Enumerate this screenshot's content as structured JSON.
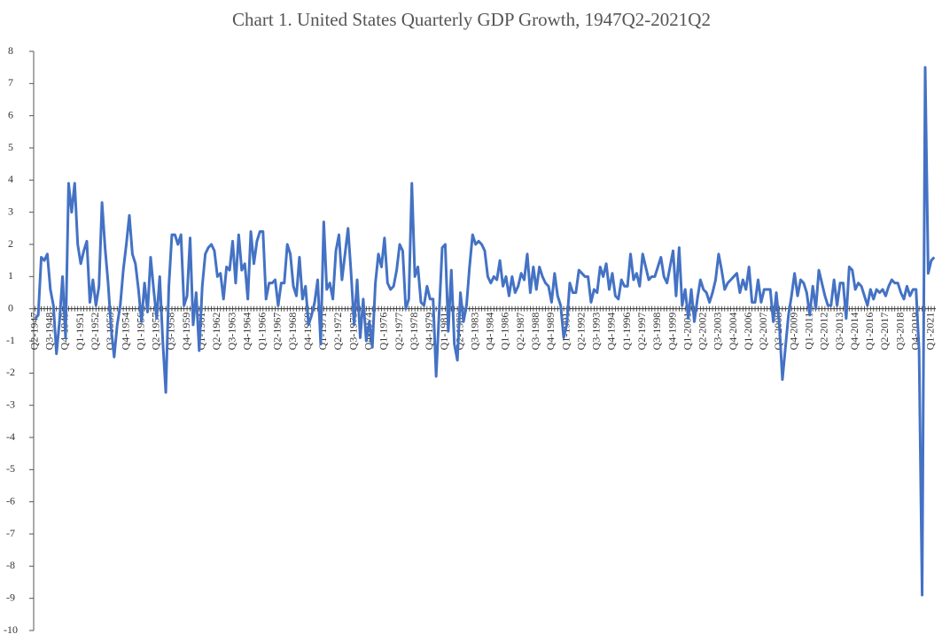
{
  "chart_data": {
    "type": "line",
    "title": "Chart 1. United States Quarterly GDP Growth, 1947Q2-2021Q2",
    "categories": [
      "Q2-1947",
      null,
      null,
      null,
      null,
      "Q3-1948",
      null,
      null,
      null,
      null,
      "Q4-1949",
      null,
      null,
      null,
      null,
      "Q1-1951",
      null,
      null,
      null,
      null,
      "Q2-1952",
      null,
      null,
      null,
      null,
      "Q3-1953",
      null,
      null,
      null,
      null,
      "Q4-1954",
      null,
      null,
      null,
      null,
      "Q1-1956",
      null,
      null,
      null,
      null,
      "Q2-1957",
      null,
      null,
      null,
      null,
      "Q3-1958",
      null,
      null,
      null,
      null,
      "Q4-1959",
      null,
      null,
      null,
      null,
      "Q1-1961",
      null,
      null,
      null,
      null,
      "Q2-1962",
      null,
      null,
      null,
      null,
      "Q3-1963",
      null,
      null,
      null,
      null,
      "Q4-1964",
      null,
      null,
      null,
      null,
      "Q1-1966",
      null,
      null,
      null,
      null,
      "Q2-1967",
      null,
      null,
      null,
      null,
      "Q3-1968",
      null,
      null,
      null,
      null,
      "Q4-1969",
      null,
      null,
      null,
      null,
      "Q1-1971",
      null,
      null,
      null,
      null,
      "Q2-1972",
      null,
      null,
      null,
      null,
      "Q3-1973",
      null,
      null,
      null,
      null,
      "Q4-1974",
      null,
      null,
      null,
      null,
      "Q1-1976",
      null,
      null,
      null,
      null,
      "Q2-1977",
      null,
      null,
      null,
      null,
      "Q3-1978",
      null,
      null,
      null,
      null,
      "Q4-1979",
      null,
      null,
      null,
      null,
      "Q1-1981",
      null,
      null,
      null,
      null,
      "Q2-1982",
      null,
      null,
      null,
      null,
      "Q3-1983",
      null,
      null,
      null,
      null,
      "Q4-1984",
      null,
      null,
      null,
      null,
      "Q1-1986",
      null,
      null,
      null,
      null,
      "Q2-1987",
      null,
      null,
      null,
      null,
      "Q3-1988",
      null,
      null,
      null,
      null,
      "Q4-1989",
      null,
      null,
      null,
      null,
      "Q1-1991",
      null,
      null,
      null,
      null,
      "Q2-1992",
      null,
      null,
      null,
      null,
      "Q3-1993",
      null,
      null,
      null,
      null,
      "Q4-1994",
      null,
      null,
      null,
      null,
      "Q1-1996",
      null,
      null,
      null,
      null,
      "Q2-1997",
      null,
      null,
      null,
      null,
      "Q3-1998",
      null,
      null,
      null,
      null,
      "Q4-1999",
      null,
      null,
      null,
      null,
      "Q1-2001",
      null,
      null,
      null,
      null,
      "Q2-2002",
      null,
      null,
      null,
      null,
      "Q3-2003",
      null,
      null,
      null,
      null,
      "Q4-2004",
      null,
      null,
      null,
      null,
      "Q1-2006",
      null,
      null,
      null,
      null,
      "Q2-2007",
      null,
      null,
      null,
      null,
      "Q3-2008",
      null,
      null,
      null,
      null,
      "Q4-2009",
      null,
      null,
      null,
      null,
      "Q1-2011",
      null,
      null,
      null,
      null,
      "Q2-2012",
      null,
      null,
      null,
      null,
      "Q3-2013",
      null,
      null,
      null,
      null,
      "Q4-2014",
      null,
      null,
      null,
      null,
      "Q1-2016",
      null,
      null,
      null,
      null,
      "Q2-2017",
      null,
      null,
      null,
      null,
      "Q3-2018",
      null,
      null,
      null,
      null,
      "Q4-2019",
      null,
      null,
      null,
      null,
      "Q1-2021",
      null
    ],
    "series": [
      {
        "color": "#4472c4",
        "values": [
          -0.3,
          -0.2,
          1.6,
          1.5,
          1.7,
          0.6,
          0.1,
          -1.4,
          -0.4,
          1.0,
          -0.9,
          3.9,
          3.0,
          3.9,
          2.0,
          1.4,
          1.8,
          2.1,
          0.2,
          0.9,
          0.1,
          0.7,
          3.3,
          1.9,
          0.8,
          -0.6,
          -1.5,
          -0.5,
          0.1,
          1.2,
          2.0,
          2.9,
          1.7,
          1.4,
          0.6,
          -0.4,
          0.8,
          -0.1,
          1.6,
          0.6,
          -0.3,
          1.0,
          -1.0,
          -2.6,
          0.7,
          2.3,
          2.3,
          2.0,
          2.3,
          0.1,
          0.4,
          2.2,
          -0.5,
          0.5,
          -1.3,
          0.7,
          1.7,
          1.9,
          2.0,
          1.8,
          1.0,
          1.1,
          0.3,
          1.3,
          1.2,
          2.1,
          0.8,
          2.3,
          1.2,
          1.4,
          0.3,
          2.4,
          1.4,
          2.1,
          2.4,
          2.4,
          0.3,
          0.8,
          0.8,
          0.9,
          0.1,
          0.8,
          0.8,
          2.0,
          1.7,
          0.7,
          0.4,
          1.6,
          0.3,
          0.7,
          -0.5,
          -0.2,
          0.2,
          0.9,
          -1.1,
          2.7,
          0.6,
          0.8,
          0.3,
          1.8,
          2.3,
          0.9,
          1.7,
          2.5,
          1.1,
          -0.5,
          0.9,
          -0.9,
          0.3,
          -1.0,
          -0.4,
          -1.2,
          0.8,
          1.7,
          1.3,
          2.2,
          0.8,
          0.6,
          0.7,
          1.2,
          2.0,
          1.8,
          0.0,
          0.3,
          3.9,
          1.0,
          1.3,
          0.2,
          0.1,
          0.7,
          0.3,
          0.3,
          -2.1,
          -0.1,
          1.9,
          2.0,
          -0.7,
          1.2,
          -1.1,
          -1.6,
          0.5,
          -0.4,
          0.1,
          1.3,
          2.3,
          2.0,
          2.1,
          2.0,
          1.8,
          1.0,
          0.8,
          1.0,
          0.9,
          1.5,
          0.7,
          1.0,
          0.4,
          1.0,
          0.5,
          0.7,
          1.1,
          0.9,
          1.7,
          0.5,
          1.3,
          0.6,
          1.3,
          1.0,
          0.8,
          0.7,
          0.2,
          1.1,
          0.4,
          0.1,
          -0.9,
          -0.5,
          0.8,
          0.5,
          0.5,
          1.2,
          1.1,
          1.0,
          1.0,
          0.2,
          0.6,
          0.5,
          1.3,
          1.0,
          1.4,
          0.6,
          1.1,
          0.4,
          0.3,
          0.9,
          0.7,
          0.7,
          1.7,
          0.9,
          1.1,
          0.7,
          1.7,
          1.3,
          0.9,
          1.0,
          1.0,
          1.3,
          1.6,
          1.0,
          0.8,
          1.3,
          1.8,
          0.4,
          1.9,
          0.1,
          0.6,
          -0.3,
          0.6,
          -0.4,
          0.3,
          0.9,
          0.6,
          0.5,
          0.2,
          0.5,
          0.9,
          1.7,
          1.2,
          0.6,
          0.8,
          0.9,
          1.0,
          1.1,
          0.5,
          0.9,
          0.6,
          1.3,
          0.2,
          0.2,
          0.9,
          0.2,
          0.6,
          0.6,
          0.6,
          -0.4,
          0.5,
          -0.5,
          -2.2,
          -1.2,
          -0.2,
          0.4,
          1.1,
          0.4,
          0.9,
          0.8,
          0.5,
          -0.2,
          0.7,
          0.0,
          1.2,
          0.8,
          0.4,
          0.1,
          0.1,
          0.9,
          0.1,
          0.8,
          0.8,
          -0.3,
          1.3,
          1.2,
          0.6,
          0.8,
          0.7,
          0.4,
          0.1,
          0.6,
          0.3,
          0.6,
          0.5,
          0.6,
          0.4,
          0.7,
          0.9,
          0.8,
          0.8,
          0.5,
          0.3,
          0.7,
          0.4,
          0.6,
          0.6,
          -1.3,
          -8.9,
          7.5,
          1.1,
          1.5,
          1.6
        ]
      }
    ],
    "ylim": [
      -10,
      8
    ],
    "yticks": [
      -10,
      -9,
      -8,
      -7,
      -6,
      -5,
      -4,
      -3,
      -2,
      -1,
      0,
      1,
      2,
      3,
      4,
      5,
      6,
      7,
      8
    ]
  }
}
